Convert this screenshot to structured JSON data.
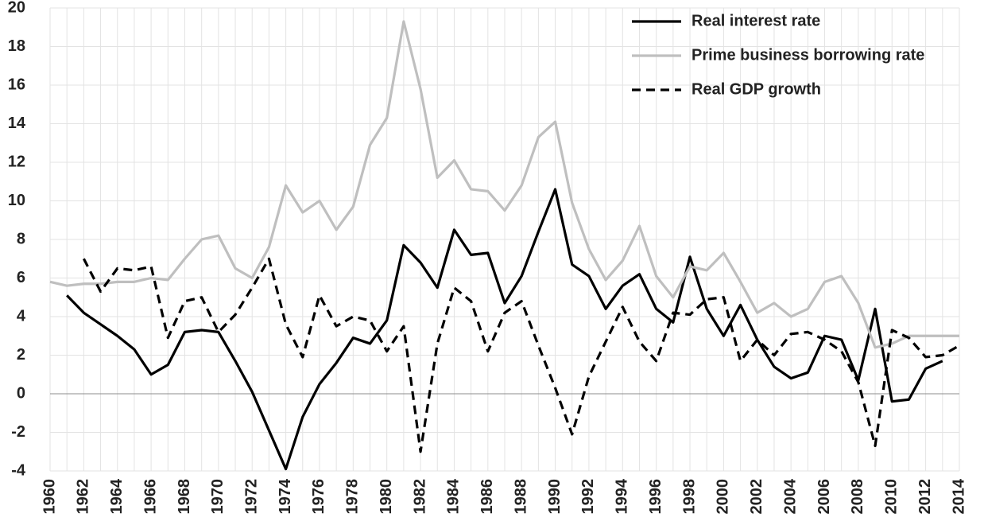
{
  "chart_data": {
    "type": "line",
    "x": [
      1960,
      1961,
      1962,
      1963,
      1964,
      1965,
      1966,
      1967,
      1968,
      1969,
      1970,
      1971,
      1972,
      1973,
      1974,
      1975,
      1976,
      1977,
      1978,
      1979,
      1980,
      1981,
      1982,
      1983,
      1984,
      1985,
      1986,
      1987,
      1988,
      1989,
      1990,
      1991,
      1992,
      1993,
      1994,
      1995,
      1996,
      1997,
      1998,
      1999,
      2000,
      2001,
      2002,
      2003,
      2004,
      2005,
      2006,
      2007,
      2008,
      2009,
      2010,
      2011,
      2012,
      2013,
      2014
    ],
    "series": [
      {
        "name": "Real interest rate",
        "color": "#000000",
        "dash": false,
        "values": [
          null,
          5.1,
          4.2,
          3.6,
          3.0,
          2.3,
          1.0,
          1.5,
          3.2,
          3.3,
          3.2,
          1.7,
          0.1,
          -1.9,
          -3.9,
          -1.2,
          0.5,
          1.6,
          2.9,
          2.6,
          3.8,
          7.7,
          6.8,
          5.5,
          8.5,
          7.2,
          7.3,
          4.7,
          6.1,
          8.4,
          10.6,
          6.7,
          6.1,
          4.4,
          5.6,
          6.2,
          4.4,
          3.7,
          7.1,
          4.4,
          3.0,
          4.6,
          2.8,
          1.4,
          0.8,
          1.1,
          3.0,
          2.8,
          0.7,
          4.4,
          -0.4,
          -0.3,
          1.3,
          1.7,
          null
        ]
      },
      {
        "name": "Prime business borrowing rate",
        "color": "#bfbfbf",
        "dash": false,
        "values": [
          5.8,
          5.6,
          5.7,
          5.7,
          5.8,
          5.8,
          6.0,
          5.9,
          7.0,
          8.0,
          8.2,
          6.5,
          6.0,
          7.6,
          10.8,
          9.4,
          10.0,
          8.5,
          9.7,
          12.9,
          14.3,
          19.3,
          15.8,
          11.2,
          12.1,
          10.6,
          10.5,
          9.5,
          10.8,
          13.3,
          14.1,
          9.9,
          7.5,
          5.9,
          6.9,
          8.7,
          6.1,
          5.0,
          6.6,
          6.4,
          7.3,
          5.8,
          4.2,
          4.7,
          4.0,
          4.4,
          5.8,
          6.1,
          4.7,
          2.4,
          2.6,
          3.0,
          3.0,
          3.0,
          3.0
        ]
      },
      {
        "name": "Real GDP growth",
        "color": "#000000",
        "dash": true,
        "values": [
          null,
          null,
          7.0,
          5.3,
          6.5,
          6.4,
          6.6,
          2.9,
          4.8,
          5.0,
          3.2,
          4.1,
          5.5,
          7.0,
          3.6,
          1.9,
          5.1,
          3.5,
          4.0,
          3.8,
          2.2,
          3.5,
          -3.0,
          2.6,
          5.5,
          4.8,
          2.2,
          4.2,
          4.8,
          2.5,
          0.3,
          -2.1,
          0.9,
          2.7,
          4.5,
          2.7,
          1.7,
          4.2,
          4.1,
          4.9,
          5.0,
          1.7,
          2.8,
          2.0,
          3.1,
          3.2,
          2.8,
          2.2,
          0.6,
          -2.7,
          3.3,
          2.9,
          1.9,
          2.0,
          2.5
        ]
      }
    ],
    "xlim": [
      1960,
      2014
    ],
    "xticks": [
      1960,
      1962,
      1964,
      1966,
      1968,
      1970,
      1972,
      1974,
      1976,
      1978,
      1980,
      1982,
      1984,
      1986,
      1988,
      1990,
      1992,
      1994,
      1996,
      1998,
      2000,
      2002,
      2004,
      2006,
      2008,
      2010,
      2012,
      2014
    ],
    "ylim": [
      -4,
      20
    ],
    "yticks": [
      -4,
      -2,
      0,
      2,
      4,
      6,
      8,
      10,
      12,
      14,
      16,
      18,
      20
    ],
    "grid": true,
    "legend": "upper right"
  }
}
